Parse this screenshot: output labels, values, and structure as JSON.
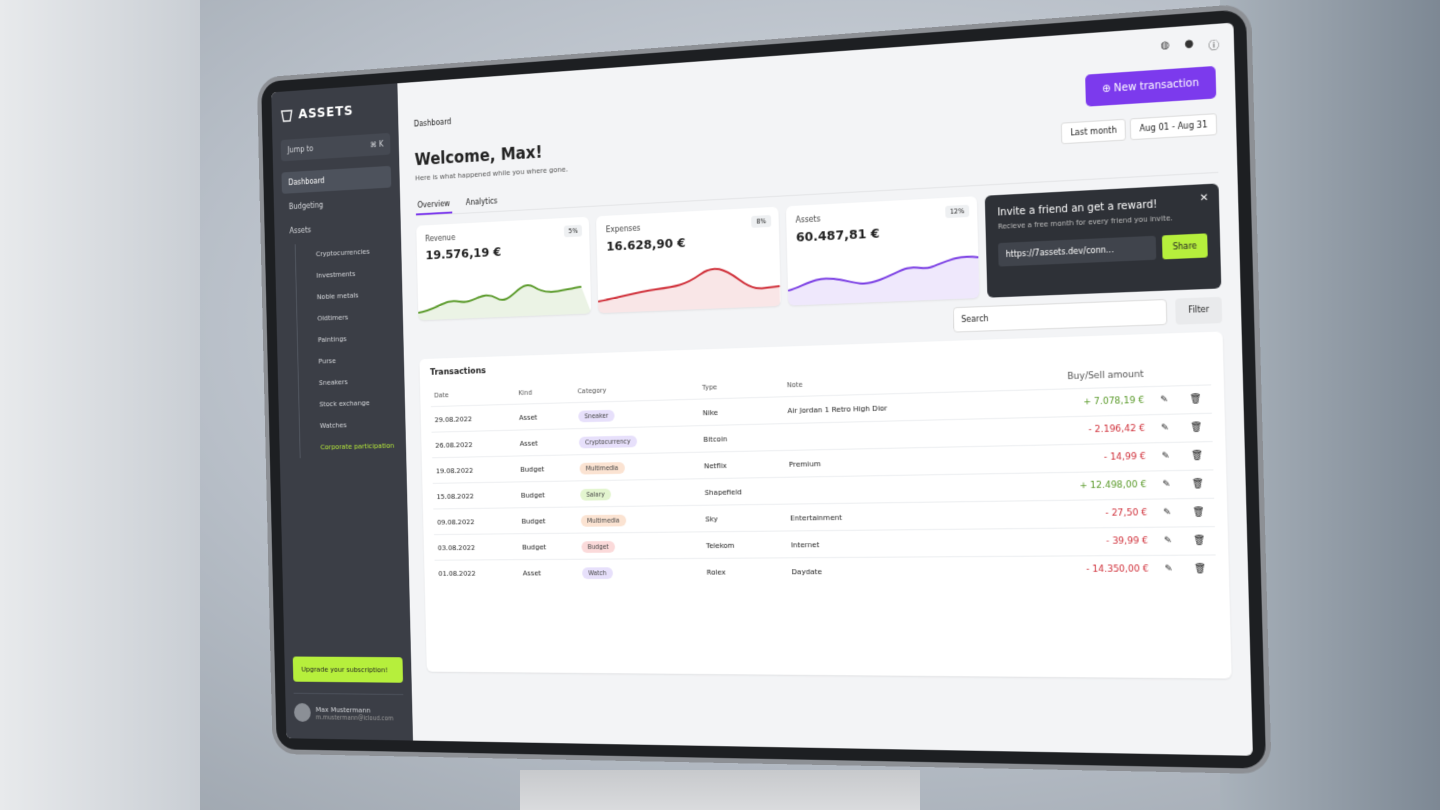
{
  "sidebar": {
    "logo": "ASSETS",
    "search": "Jump to",
    "shortcut": "⌘ K",
    "nav": [
      "Dashboard",
      "Budgeting",
      "Assets"
    ],
    "subnav": [
      "Cryptocurrencies",
      "Investments",
      "Noble metals",
      "Oldtimers",
      "Paintings",
      "Purse",
      "Sneakers",
      "Stock exchange",
      "Watches",
      "Corporate participation"
    ],
    "upgrade": "Upgrade your subscription!",
    "user": {
      "name": "Max Mustermann",
      "email": "m.mustermann@icloud.com"
    }
  },
  "header": {
    "breadcrumb": "Dashboard",
    "new_transaction": "New transaction",
    "period": "Last month",
    "date_range": "Aug 01 - Aug 31"
  },
  "welcome": {
    "title": "Welcome, Max!",
    "subtitle": "Here is what happened while you where gone."
  },
  "tabs": [
    "Overview",
    "Analytics"
  ],
  "cards": [
    {
      "label": "Revenue",
      "value": "19.576,19 €",
      "change": "5%",
      "color": "#5a9a2a"
    },
    {
      "label": "Expenses",
      "value": "16.628,90 €",
      "change": "8%",
      "color": "#d0303a"
    },
    {
      "label": "Assets",
      "value": "60.487,81 €",
      "change": "12%",
      "color": "#7b3fe4"
    }
  ],
  "invite": {
    "title": "Invite a friend an get a reward!",
    "subtitle": "Recieve a free month for every friend you invite.",
    "link": "https://7assets.dev/conn...",
    "share": "Share"
  },
  "search": "Search",
  "filter": "Filter",
  "table": {
    "title": "Transactions",
    "columns": [
      "Date",
      "Kind",
      "Category",
      "Type",
      "Note",
      "Buy/Sell amount"
    ],
    "rows": [
      [
        "29.08.2022",
        "Asset",
        "Sneaker",
        "Nike",
        "Air Jordan 1 Retro High Dior",
        "+ 7.078,19 €"
      ],
      [
        "26.08.2022",
        "Asset",
        "Cryptocurrency",
        "Bitcoin",
        null,
        "- 2.196,42 €"
      ],
      [
        "19.08.2022",
        "Budget",
        "Multimedia",
        "Netflix",
        "Premium",
        "- 14,99 €"
      ],
      [
        "15.08.2022",
        "Budget",
        "Salary",
        "Shapefield",
        null,
        "+ 12.498,00 €"
      ],
      [
        "09.08.2022",
        "Budget",
        "Multimedia",
        "Sky",
        "Entertainment",
        "- 27,50 €"
      ],
      [
        "03.08.2022",
        "Budget",
        "Budget",
        "Telekom",
        "Internet",
        "- 39,99 €"
      ],
      [
        "01.08.2022",
        "Asset",
        "Watch",
        "Rolex",
        "Daydate",
        "- 14.350,00 €"
      ]
    ],
    "chip_colors": [
      "#e7e0fb",
      "#e7e0fb",
      "#fbe3d2",
      "#e3f5cf",
      "#fbe3d2",
      "#fbdada",
      "#e7e0fb"
    ]
  }
}
